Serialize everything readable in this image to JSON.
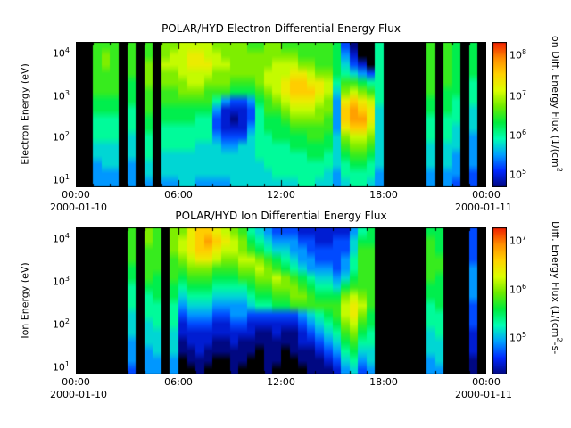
{
  "electron": {
    "title": "POLAR/HYD  Electron Differential Energy Flux",
    "ylabel": "Electron Energy (eV)",
    "yticks": [
      {
        "base": "10",
        "exp": "4"
      },
      {
        "base": "10",
        "exp": "3"
      },
      {
        "base": "10",
        "exp": "2"
      },
      {
        "base": "10",
        "exp": "1"
      }
    ],
    "xticks": [
      "00:00",
      "06:00",
      "12:00",
      "18:00",
      "00:00"
    ],
    "date_left": "2000-01-10",
    "date_right": "2000-01-11",
    "colorbar": {
      "ticks": [
        {
          "base": "10",
          "exp": "8"
        },
        {
          "base": "10",
          "exp": "7"
        },
        {
          "base": "10",
          "exp": "6"
        },
        {
          "base": "10",
          "exp": "5"
        }
      ],
      "label_pre": "on Diff. Energy Flux (1/(cm",
      "label_sup": "2",
      "label_post": ""
    }
  },
  "ion": {
    "title": "POLAR/HYD  Ion Differential Energy Flux",
    "ylabel": "Ion Energy (eV)",
    "yticks": [
      {
        "base": "10",
        "exp": "4"
      },
      {
        "base": "10",
        "exp": "3"
      },
      {
        "base": "10",
        "exp": "2"
      },
      {
        "base": "10",
        "exp": "1"
      }
    ],
    "xticks": [
      "00:00",
      "06:00",
      "12:00",
      "18:00",
      "00:00"
    ],
    "date_left": "2000-01-10",
    "date_right": "2000-01-11",
    "colorbar": {
      "ticks": [
        {
          "base": "10",
          "exp": "7"
        },
        {
          "base": "10",
          "exp": "6"
        },
        {
          "base": "10",
          "exp": "5"
        }
      ],
      "label_pre": "Diff. Energy Flux (1/(cm",
      "label_sup": "2",
      "label_post": "-s-"
    }
  },
  "chart_data": [
    {
      "id": "electron",
      "type": "heatmap",
      "title": "POLAR/HYD  Electron Differential Energy Flux",
      "xlabel_dates": [
        "2000-01-10",
        "2000-01-11"
      ],
      "x_start": "2000-01-10 00:00",
      "x_end": "2000-01-11 00:00",
      "x_bin_minutes": 30,
      "x_tick_labels": [
        "00:00",
        "06:00",
        "12:00",
        "18:00",
        "00:00"
      ],
      "ylabel": "Electron Energy (eV)",
      "y_scale": "log",
      "y_range_ev": [
        10,
        20000
      ],
      "y_tick_values_ev": [
        10000,
        1000,
        100,
        10
      ],
      "flux_units": "1/(cm^2)",
      "colorbar_tick_values": [
        100000000,
        10000000,
        1000000,
        100000
      ],
      "flux_log10_range": [
        4.7,
        8.3
      ],
      "encoding": "rows: 16 energy bins, top=high energy; each char one 30-min bin; hex 0=no data (black), 1-f = increasing log flux",
      "background": "#000000",
      "colormap": [
        "#000882",
        "#0028ff",
        "#00a0ff",
        "#00ffb4",
        "#00eb3c",
        "#6eeb00",
        "#dcff00",
        "#ffd200",
        "#ff8c00",
        "#f01e00"
      ],
      "grid": [
        "008880808099aaaa99998899888888731006000008087070",
        "00898080809aabbaa9999999998888742006000008087070",
        "0089808090aaabbbaa99999aaa9988753206000008087070",
        "008880809099aaaa999999aaabba99765436000008087070",
        "0088807090999aa9998889aabccbba688766000008087060",
        "00888070808899988877789abcccba59a986000008077060",
        "007770708088888864334789abbba94bcba6000007076060",
        "0077706080777777422236889aaa994cdcb5000007076050",
        "0066606070777766321236778999984cddb5000006066050",
        "0066606070666666322246777888884bcca5000006065050",
        "00666050606666664333566777788759aa95000006065040",
        "005550506066665554455666677777589985000005055040",
        "005550506055555555555666666776578875000005054040",
        "004550405055555555555566666666567765000005054040",
        "004440405055555555555556666665466664000004044030",
        "004440404044554444555555556655456654000004043030"
      ]
    },
    {
      "id": "ion",
      "type": "heatmap",
      "title": "POLAR/HYD  Ion Differential Energy Flux",
      "xlabel_dates": [
        "2000-01-10",
        "2000-01-11"
      ],
      "x_start": "2000-01-10 00:00",
      "x_end": "2000-01-11 00:00",
      "x_bin_minutes": 30,
      "x_tick_labels": [
        "00:00",
        "06:00",
        "12:00",
        "18:00",
        "00:00"
      ],
      "ylabel": "Ion Energy (eV)",
      "y_scale": "log",
      "y_range_ev": [
        10,
        20000
      ],
      "y_tick_values_ev": [
        10000,
        1000,
        100,
        10
      ],
      "flux_units": "1/(cm^2-s-)",
      "colorbar_tick_values": [
        10000000,
        1000000,
        100000
      ],
      "flux_log10_range": [
        4.3,
        7.3
      ],
      "encoding": "rows: 16 energy bins, top=high energy; each char one 30-min bin; hex 0=no data (black), 1-f = increasing log flux",
      "background": "#000000",
      "colormap": [
        "#000882",
        "#0028ff",
        "#00a0ff",
        "#00ffb4",
        "#00eb3c",
        "#6eeb00",
        "#dcff00",
        "#ffd200",
        "#ff8c00",
        "#f01e00"
      ],
      "grid": [
        "0000008098099bccba986543332222224670000007700030",
        "000000809809abcdcba97654443322335770000008700030",
        "000000808809abccbaa98765544333335880000008700030",
        "0000008088089abba99aa987654433346880000008800030",
        "000000708808899988899a98765444346880000008800040",
        "00000070870878887778899a987655457880000008700040",
        "000000607707677766667889998766578880000007700040",
        "00000060670756665555677889987779a980000007700040",
        "0000006066064555444456677888888aba80000006700030",
        "0000005066063444334433333345678ab970000006600030",
        "00000050560623332233222222345679a870000006600030",
        "000000505505222222222112112345689760000005600020",
        "000000405505122211211111112234578660000005500020",
        "000000404505112111111011011123467550000005500020",
        "000000404404011100110011001112356450000004500010",
        "000000304404001000100010000111245340000004400010"
      ]
    }
  ]
}
